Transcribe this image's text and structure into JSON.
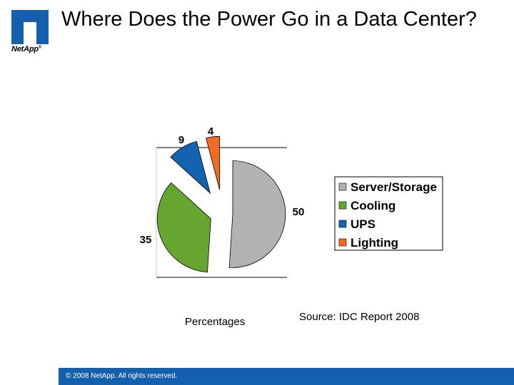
{
  "slide": {
    "title": "Where Does the Power Go in a Data Center?",
    "logo_text": "NetApp",
    "logo_registered": "®",
    "caption": "Percentages",
    "source": "Source:  IDC Report 2008",
    "copyright": "© 2008 NetApp.  All rights reserved."
  },
  "colors": {
    "server_storage": "#b2b2b2",
    "cooling": "#66a630",
    "ups": "#1463b0",
    "lighting": "#f26b22",
    "footer": "#1560ae"
  },
  "chart_data": {
    "type": "pie",
    "title": "",
    "unit": "Percentages",
    "exploded": true,
    "categories": [
      "Server/Storage",
      "Cooling",
      "UPS",
      "Lighting"
    ],
    "values": [
      50,
      35,
      9,
      4
    ],
    "colors": [
      "#b2b2b2",
      "#66a630",
      "#1463b0",
      "#f26b22"
    ],
    "legend": {
      "position": "right",
      "entries": [
        "Server/Storage",
        "Cooling",
        "UPS",
        "Lighting"
      ]
    }
  }
}
